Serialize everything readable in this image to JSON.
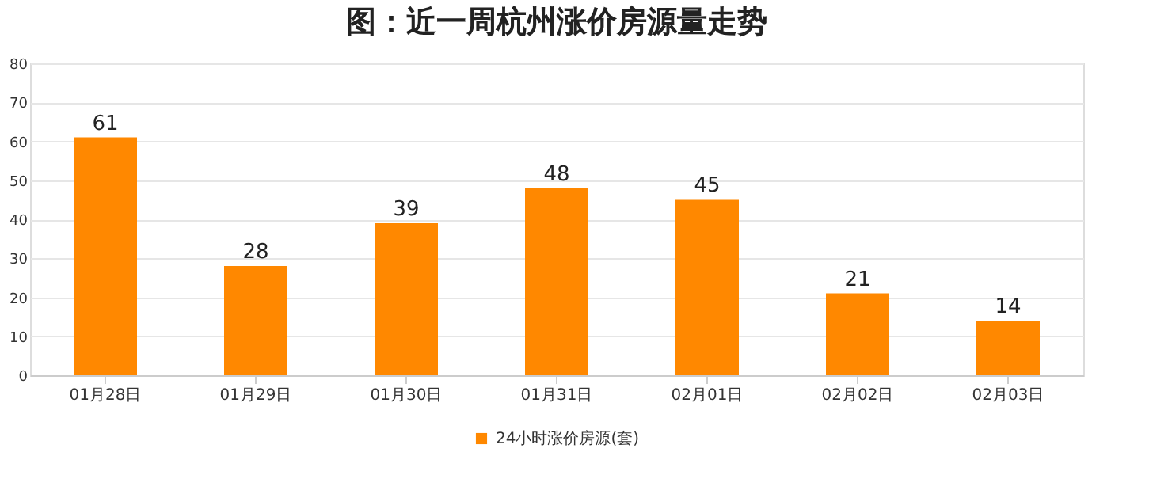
{
  "chart_data": {
    "type": "bar",
    "title": "图：近一周杭州涨价房源量走势",
    "categories": [
      "01月28日",
      "01月29日",
      "01月30日",
      "01月31日",
      "02月01日",
      "02月02日",
      "02月03日"
    ],
    "series": [
      {
        "name": "24小时涨价房源(套)",
        "color": "#ff8800",
        "values": [
          61,
          28,
          39,
          48,
          45,
          21,
          14
        ]
      }
    ],
    "ylim": [
      0,
      80
    ],
    "yticks": [
      0,
      10,
      20,
      30,
      40,
      50,
      60,
      70,
      80
    ],
    "grid": "y",
    "legend": "bottom",
    "data_labels": true
  }
}
